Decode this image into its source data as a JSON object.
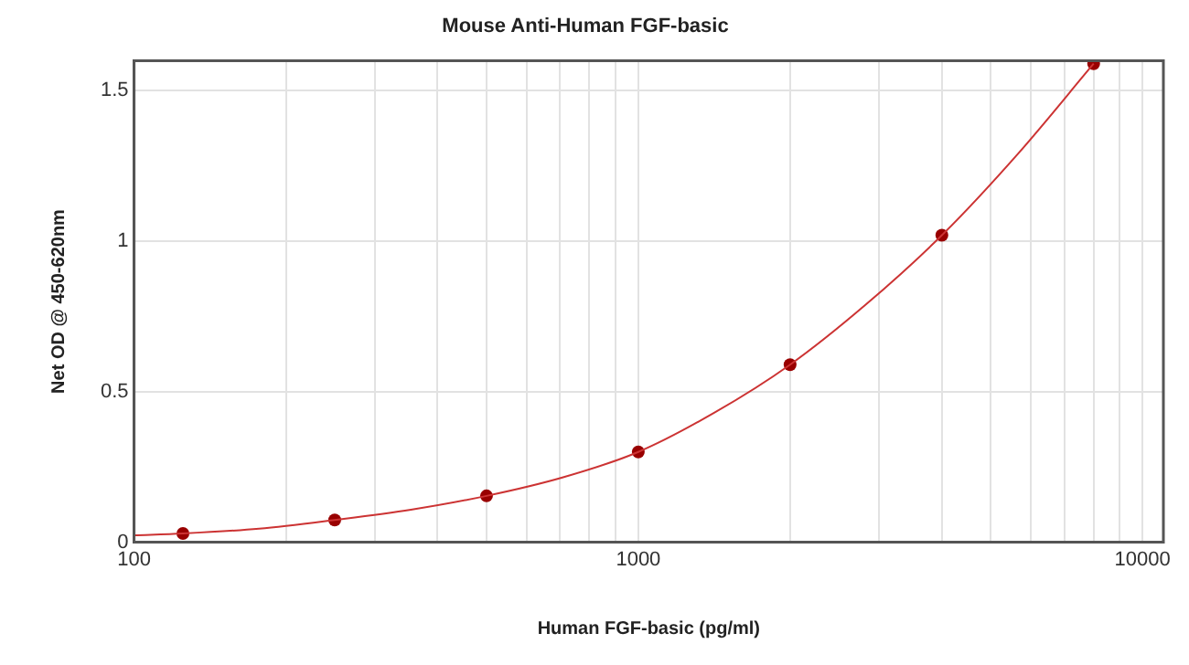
{
  "chart_data": {
    "type": "scatter",
    "title": "Mouse Anti-Human FGF-basic",
    "xlabel": "Human FGF-basic (pg/ml)",
    "ylabel": "Net OD @ 450-620nm",
    "log": "x",
    "grid": true,
    "xlim": [
      100,
      11000
    ],
    "ylim": [
      0,
      1.6
    ],
    "xticks": [
      100,
      {
        "value": 200,
        "label": null
      },
      {
        "value": 300,
        "label": null
      },
      {
        "value": 400,
        "label": null
      },
      {
        "value": 500,
        "label": null
      },
      {
        "value": 600,
        "label": null
      },
      {
        "value": 700,
        "label": null
      },
      {
        "value": 800,
        "label": null
      },
      {
        "value": 900,
        "label": null
      },
      1000,
      {
        "value": 2000,
        "label": null
      },
      {
        "value": 3000,
        "label": null
      },
      {
        "value": 4000,
        "label": null
      },
      {
        "value": 5000,
        "label": null
      },
      {
        "value": 6000,
        "label": null
      },
      {
        "value": 7000,
        "label": null
      },
      {
        "value": 8000,
        "label": null
      },
      {
        "value": 9000,
        "label": null
      },
      10000
    ],
    "yticks": [
      0,
      0.5,
      1,
      1.5
    ],
    "series": [
      {
        "type": "line",
        "marker": "none",
        "color": "#cc3333",
        "x": [
          100,
          125,
          177,
          250,
          354,
          500,
          707,
          1000,
          1414,
          2000,
          2828,
          4000,
          5657,
          8000
        ],
        "values": [
          0.023,
          0.029,
          0.045,
          0.074,
          0.108,
          0.154,
          0.215,
          0.3,
          0.43,
          0.59,
          0.79,
          1.02,
          1.29,
          1.59
        ]
      },
      {
        "type": "scatter",
        "marker": "circle",
        "color": "#990000",
        "x": [
          125,
          250,
          500,
          1000,
          2000,
          4000,
          8000
        ],
        "values": [
          0.029,
          0.074,
          0.154,
          0.3,
          0.59,
          1.02,
          1.59
        ]
      }
    ]
  }
}
